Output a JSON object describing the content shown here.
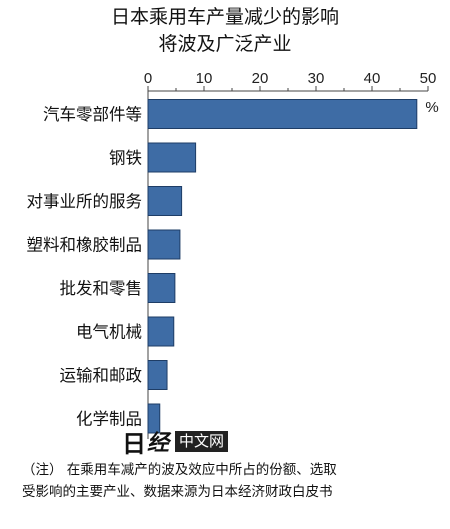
{
  "chart_data": {
    "type": "bar",
    "orientation": "horizontal",
    "title": [
      "日本乘用车产量减少的影响",
      "将波及广泛产业"
    ],
    "categories": [
      "汽车零部件等",
      "钢铁",
      "对事业所的服务",
      "塑料和橡胶制品",
      "批发和零售",
      "电气机械",
      "运输和邮政",
      "化学制品"
    ],
    "values": [
      48,
      8.5,
      6,
      5.7,
      4.8,
      4.6,
      3.4,
      2.1
    ],
    "xticks": [
      0,
      10,
      20,
      30,
      40,
      50
    ],
    "xlim": [
      0,
      50
    ],
    "unit": "%",
    "axis_position": "top",
    "bar_color": "#3e6ca5"
  },
  "logo": {
    "ri": "日",
    "jing": "经",
    "box": "中文网"
  },
  "note": {
    "line1": "（注）  在乘用车减产的波及效应中所占的份额、选取",
    "line2": "受影响的主要产业、数据来源为日本经济财政白皮书"
  }
}
